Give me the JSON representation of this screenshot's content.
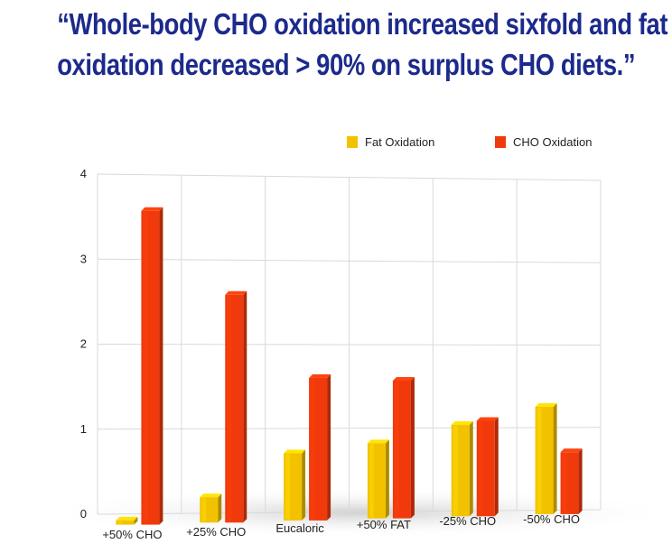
{
  "headline": {
    "line1": "“Whole-body CHO oxidation increased sixfold and fat",
    "line2": "oxidation decreased > 90% on surplus CHO diets.”"
  },
  "chart_data": {
    "type": "bar",
    "categories": [
      "+50% CHO",
      "+25% CHO",
      "Eucaloric",
      "+50% FAT",
      "-25% CHO",
      "-50% CHO"
    ],
    "series": [
      {
        "name": "Fat Oxidation",
        "values": [
          0.05,
          0.3,
          0.8,
          0.9,
          1.1,
          1.3
        ],
        "color": "#f2c200"
      },
      {
        "name": "CHO Oxidation",
        "values": [
          3.7,
          2.7,
          1.7,
          1.65,
          1.15,
          0.75
        ],
        "color": "#f03a0c"
      }
    ],
    "yticks": [
      "0",
      "1",
      "2",
      "3",
      "4"
    ],
    "ylim": [
      0,
      4
    ],
    "grid": true,
    "legend_position": "top-right"
  }
}
